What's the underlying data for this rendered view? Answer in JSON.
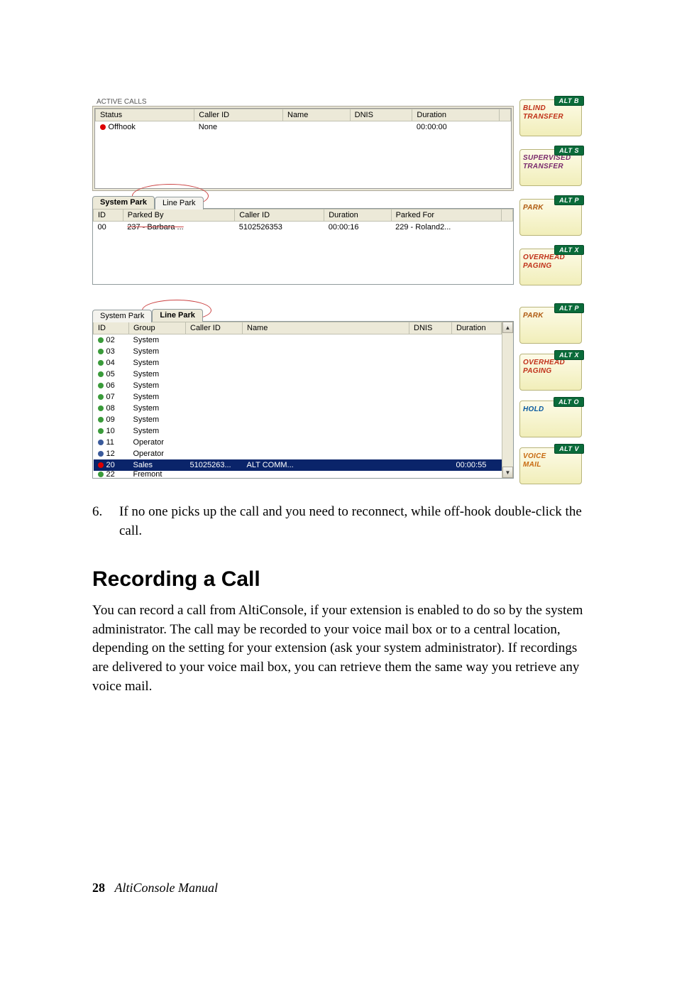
{
  "panel1": {
    "active_calls_label": "ACTIVE CALLS",
    "active_headers": [
      "Status",
      "Caller ID",
      "Name",
      "DNIS",
      "Duration"
    ],
    "active_row": {
      "status": "Offhook",
      "caller_id": "None",
      "name": "",
      "dnis": "",
      "duration": "00:00:00"
    },
    "tabs": {
      "system_park": "System Park",
      "line_park": "Line Park"
    },
    "sp_headers": [
      "ID",
      "Parked By",
      "Caller ID",
      "Duration",
      "Parked For"
    ],
    "sp_row": {
      "id": "00",
      "parked_by": "237 - Barbara ...",
      "caller_id": "5102526353",
      "duration": "00:00:16",
      "parked_for": "229 - Roland2..."
    },
    "buttons": [
      {
        "alt": "ALT B",
        "label1": "BLIND",
        "label2": "TRANSFER",
        "cls": "c-red"
      },
      {
        "alt": "ALT S",
        "label1": "SUPERVISED",
        "label2": "TRANSFER",
        "cls": "c-purple"
      },
      {
        "alt": "ALT P",
        "label1": "PARK",
        "label2": "",
        "cls": "c-dorange"
      },
      {
        "alt": "ALT X",
        "label1": "OVERHEAD",
        "label2": "PAGING",
        "cls": "c-red"
      }
    ]
  },
  "panel2": {
    "tabs": {
      "system_park": "System Park",
      "line_park": "Line Park"
    },
    "lp_headers": [
      "ID",
      "Group",
      "Caller ID",
      "Name",
      "DNIS",
      "Duration"
    ],
    "lp_rows": [
      {
        "dot": "green",
        "id": "02",
        "group": "System"
      },
      {
        "dot": "green",
        "id": "03",
        "group": "System"
      },
      {
        "dot": "green",
        "id": "04",
        "group": "System"
      },
      {
        "dot": "green",
        "id": "05",
        "group": "System"
      },
      {
        "dot": "green",
        "id": "06",
        "group": "System"
      },
      {
        "dot": "green",
        "id": "07",
        "group": "System"
      },
      {
        "dot": "green",
        "id": "08",
        "group": "System"
      },
      {
        "dot": "green",
        "id": "09",
        "group": "System"
      },
      {
        "dot": "green",
        "id": "10",
        "group": "System"
      },
      {
        "dot": "blue",
        "id": "11",
        "group": "Operator"
      },
      {
        "dot": "blue",
        "id": "12",
        "group": "Operator"
      }
    ],
    "lp_selected": {
      "id": "20",
      "group": "Sales",
      "caller_id": "51025263...",
      "name": "ALT COMM...",
      "dnis": "",
      "duration": "00:00:55"
    },
    "lp_tail": {
      "id": "22",
      "group": "Fremont"
    },
    "buttons": [
      {
        "alt": "ALT P",
        "label1": "PARK",
        "label2": "",
        "cls": "c-dorange"
      },
      {
        "alt": "ALT X",
        "label1": "OVERHEAD",
        "label2": "PAGING",
        "cls": "c-red"
      },
      {
        "alt": "ALT O",
        "label1": "HOLD",
        "label2": "",
        "cls": "c-blue"
      },
      {
        "alt": "ALT V",
        "label1": "VOICE",
        "label2": "MAIL",
        "cls": "c-orange"
      }
    ]
  },
  "doc": {
    "step_num": "6.",
    "step_text": "If no one picks up the call and you need to reconnect, while off-hook double-click the call.",
    "heading": "Recording a Call",
    "para": "You can record a call from AltiConsole, if your extension is enabled to do so by the system administrator. The call may be recorded to your voice mail box or to a central location, depending on the setting for your extension (ask your system administrator). If recordings are delivered to your voice mail box, you can retrieve them the same way you retrieve any voice mail.",
    "page_num": "28",
    "manual_title": "AltiConsole Manual"
  }
}
